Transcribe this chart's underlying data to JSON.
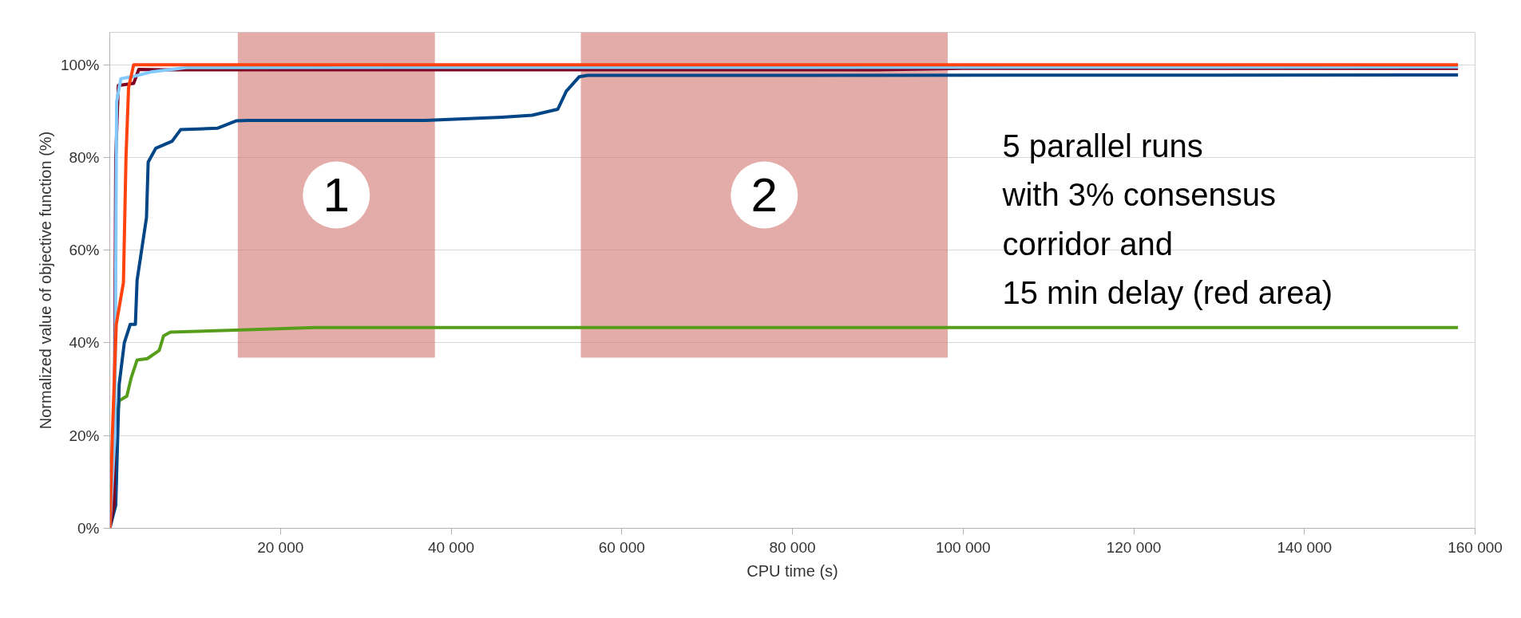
{
  "chart_data": {
    "type": "line",
    "xlabel": "CPU time (s)",
    "ylabel": "Normalized value of objective function (%)",
    "xlim": [
      0,
      160000
    ],
    "xticks": [
      {
        "value": 20000,
        "label": "20 000"
      },
      {
        "value": 40000,
        "label": "40 000"
      },
      {
        "value": 60000,
        "label": "60 000"
      },
      {
        "value": 80000,
        "label": "80 000"
      },
      {
        "value": 100000,
        "label": "100 000"
      },
      {
        "value": 120000,
        "label": "120 000"
      },
      {
        "value": 140000,
        "label": "140 000"
      },
      {
        "value": 160000,
        "label": "160 000"
      }
    ],
    "ylim": [
      0,
      107
    ],
    "yticks": [
      {
        "value": 0,
        "label": "0%"
      },
      {
        "value": 20,
        "label": "20%"
      },
      {
        "value": 40,
        "label": "40%"
      },
      {
        "value": 60,
        "label": "60%"
      },
      {
        "value": 80,
        "label": "80%"
      },
      {
        "value": 100,
        "label": "100%"
      }
    ],
    "grid": "y",
    "marker": "none",
    "line_style": "solid",
    "series": [
      {
        "color": "#579d1c",
        "x": [
          0,
          600,
          1100,
          2000,
          2500,
          3200,
          4400,
          5800,
          6300,
          7100,
          15500,
          24000,
          158000
        ],
        "values": [
          0,
          20,
          27.5,
          28.5,
          32.4,
          36.3,
          36.6,
          38.4,
          41.5,
          42.3,
          42.8,
          43.3,
          43.3
        ]
      },
      {
        "color": "#004586",
        "x": [
          0,
          700,
          1100,
          1700,
          2400,
          3000,
          3200,
          4300,
          4500,
          5400,
          7300,
          8300,
          12600,
          14800,
          16300,
          37000,
          46000,
          49500,
          52500,
          53500,
          55000,
          56000,
          158000
        ],
        "values": [
          0,
          5,
          31,
          40,
          44,
          44,
          53.5,
          67,
          79,
          82,
          83.5,
          86,
          86.3,
          87.9,
          88,
          88,
          88.7,
          89.1,
          90.4,
          94.3,
          97.4,
          97.7,
          97.8
        ]
      },
      {
        "color": "#7e0021",
        "x": [
          0,
          500,
          700,
          1000,
          2800,
          3400,
          6000,
          90000,
          100000,
          158000
        ],
        "values": [
          0,
          5,
          80,
          95.5,
          96,
          99,
          98.9,
          98.9,
          99.2,
          99.2
        ]
      },
      {
        "color": "#83caff",
        "x": [
          0,
          600,
          800,
          1300,
          2800,
          5000,
          9000,
          158000
        ],
        "values": [
          0,
          20,
          92,
          97,
          97.5,
          98.5,
          99.4,
          99.5
        ]
      },
      {
        "color": "#ff420e",
        "x": [
          0,
          300,
          760,
          1600,
          1900,
          2200,
          2800,
          158000
        ],
        "values": [
          0,
          20,
          44,
          53,
          80,
          95,
          100,
          100
        ]
      }
    ],
    "bands": [
      {
        "axis": "x",
        "from": 15000,
        "to": 38100,
        "label": "1",
        "color": "#d27470"
      },
      {
        "axis": "x",
        "from": 55200,
        "to": 98200,
        "label": "2",
        "color": "#d27470"
      }
    ],
    "annotations": [
      "5 parallel runs\nwith 3% consensus\ncorridor  and\n15 min delay (red area)"
    ]
  }
}
